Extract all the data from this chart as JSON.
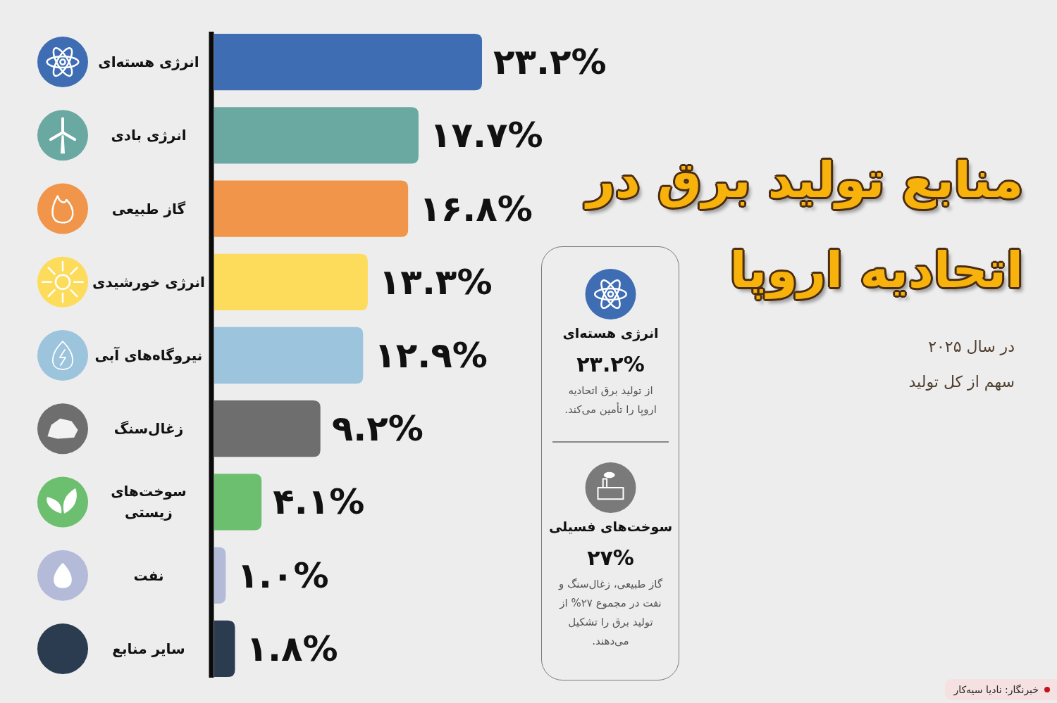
{
  "chart_data": {
    "type": "bar",
    "orientation": "horizontal",
    "title": "منابع تولید برق در اتحادیه اروپا",
    "subtitle": "در سال ۲۰۲۵",
    "categories": [
      "انرژی هسته‌ای",
      "انرژی بادی",
      "گاز طبیعی",
      "انرژی خورشیدی",
      "نیروگاه‌های آبی",
      "زغال‌سنگ",
      "سوخت‌های زیستی",
      "نفت",
      "سایر منابع"
    ],
    "values": [
      23.2,
      17.7,
      16.8,
      13.3,
      12.9,
      9.2,
      4.1,
      1.0,
      1.8
    ],
    "colors": [
      "#3e6db4",
      "#6aa8a2",
      "#f0954a",
      "#fddc5c",
      "#9cc4dd",
      "#6e6e6e",
      "#6cbf6e",
      "#b4bbd9",
      "#2b3b50"
    ],
    "value_labels": [
      "۲۳.۲%",
      "۱۷.۷%",
      "۱۶.۸%",
      "۱۳.۳%",
      "۱۲.۹%",
      "۹.۲%",
      "۴.۱%",
      "۱.۰%",
      "۱.۸%"
    ],
    "tick_labels": "y",
    "annotations": [
      "سهم از کل تولید",
      "انرژی هسته‌ای",
      "۲۳.۲%",
      "از تولید برق اتحادیه اروپا را تأمین می‌کند.",
      "سوخت‌های فسیلی",
      "۲۷%",
      "گاز طبیعی، زغال‌سنگ و نفت در مجموع ۲۷% از تولید برق را تشکیل می‌دهند.",
      "خبرنگار: نادیا سیه‌کار"
    ]
  }
}
